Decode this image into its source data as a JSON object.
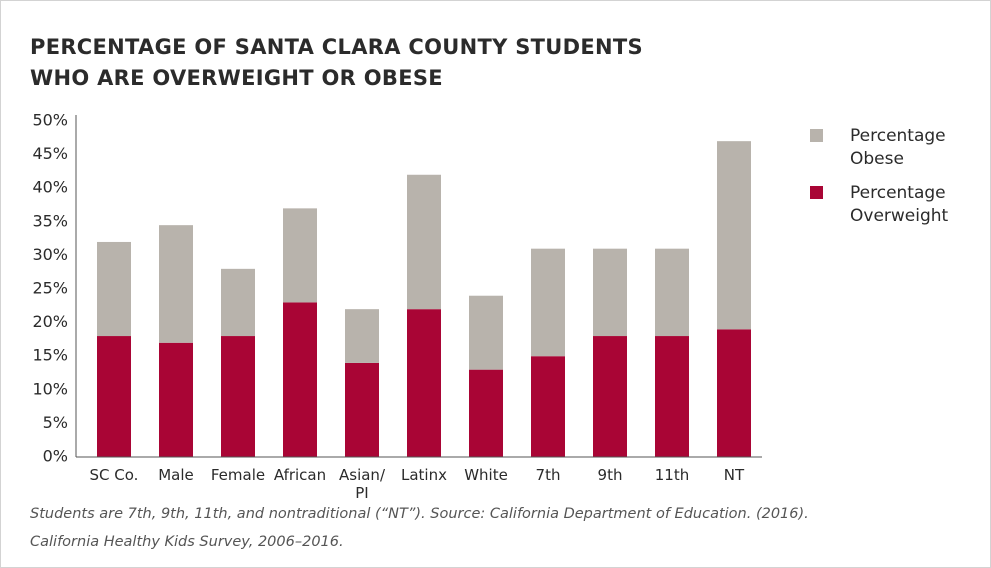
{
  "chart_data": {
    "type": "stacked_bar",
    "title": "PERCENTAGE OF SANTA CLARA COUNTY STUDENTS\nWHO ARE OVERWEIGHT OR OBESE",
    "note": "Students are 7th, 9th, 11th, and nontraditional (“NT”). Source: California Department of Education. (2016).\nCalifornia Healthy Kids Survey, 2006–2016.",
    "categories": [
      "SC Co.",
      "Male",
      "Female",
      "African",
      "Asian/ PI",
      "Latinx",
      "White",
      "7th",
      "9th",
      "11th",
      "NT"
    ],
    "series": [
      {
        "name": "Percentage Overweight",
        "color": "#a90535",
        "values": [
          18,
          17,
          18,
          23,
          14,
          22,
          13,
          15,
          18,
          18,
          19
        ]
      },
      {
        "name": "Percentage Obese",
        "color": "#b8b3ac",
        "values": [
          14,
          17.5,
          10,
          14,
          8,
          20,
          11,
          16,
          13,
          13,
          28
        ]
      }
    ],
    "ylim": [
      0,
      50
    ],
    "yticks": [
      {
        "value": 0,
        "label": "0%"
      },
      {
        "value": 5,
        "label": "5%"
      },
      {
        "value": 10,
        "label": "10%"
      },
      {
        "value": 15,
        "label": "15%"
      },
      {
        "value": 20,
        "label": "20%"
      },
      {
        "value": 25,
        "label": "25%"
      },
      {
        "value": 30,
        "label": "30%"
      },
      {
        "value": 35,
        "label": "35%"
      },
      {
        "value": 40,
        "label": "40%"
      },
      {
        "value": 45,
        "label": "45%"
      },
      {
        "value": 50,
        "label": "50%"
      }
    ],
    "grid": false,
    "legend": "right"
  }
}
